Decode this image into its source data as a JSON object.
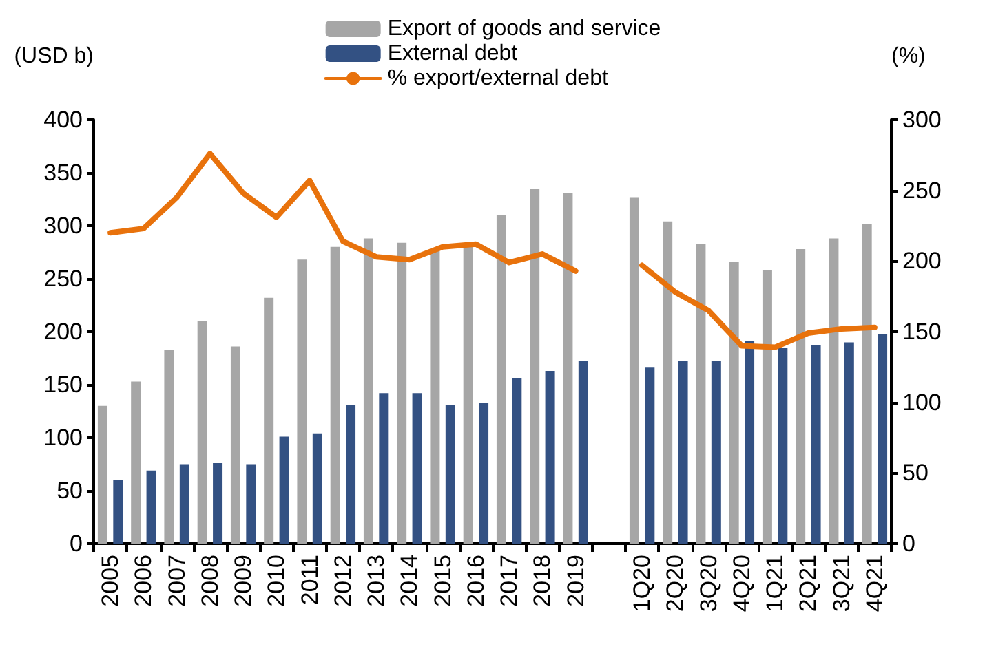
{
  "chart_data": {
    "type": "bar",
    "ylabel": "(USD b)",
    "y2label": "(%)",
    "categories": [
      "2005",
      "2006",
      "2007",
      "2008",
      "2009",
      "2010",
      "2011",
      "2012",
      "2013",
      "2014",
      "2015",
      "2016",
      "2017",
      "2018",
      "2019",
      null,
      "1Q20",
      "2Q20",
      "3Q20",
      "4Q20",
      "1Q21",
      "2Q21",
      "3Q21",
      "4Q21"
    ],
    "series": [
      {
        "name": "Export of goods and service",
        "color": "#a6a6a6",
        "values": [
          130,
          153,
          183,
          210,
          186,
          232,
          268,
          280,
          288,
          284,
          279,
          283,
          310,
          335,
          331,
          null,
          327,
          304,
          283,
          266,
          258,
          278,
          288,
          302
        ]
      },
      {
        "name": "External debt",
        "color": "#335183",
        "values": [
          60,
          69,
          75,
          76,
          75,
          101,
          104,
          131,
          142,
          142,
          131,
          133,
          156,
          163,
          172,
          null,
          166,
          172,
          172,
          191,
          185,
          187,
          190,
          198
        ]
      },
      {
        "name": "% export/external debt",
        "type": "line",
        "axis": "y2",
        "color": "#e8720c",
        "values": [
          220,
          223,
          245,
          276,
          248,
          231,
          257,
          214,
          203,
          201,
          210,
          212,
          199,
          205,
          193,
          null,
          197,
          178,
          165,
          140,
          139,
          149,
          152,
          153
        ]
      }
    ],
    "ylim": [
      0,
      400
    ],
    "yticks": [
      0,
      50,
      100,
      150,
      200,
      250,
      300,
      350,
      400
    ],
    "y2lim": [
      0,
      300
    ],
    "y2ticks": [
      0,
      50,
      100,
      150,
      200,
      250,
      300
    ],
    "grid": false,
    "legend": "top",
    "marker": "none",
    "line_style": "solid"
  }
}
